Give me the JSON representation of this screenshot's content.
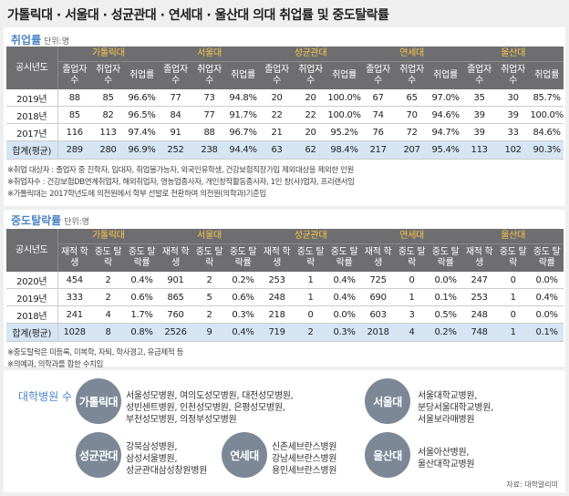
{
  "title": "가톨릭대 · 서울대 · 성균관대 · 연세대 · 울산대 의대 취업률 및 중도탈락률",
  "employment": {
    "title": "취업률",
    "unit": "단위:명",
    "year_header": "공시년도",
    "universities": [
      "가톨릭대",
      "서울대",
      "성균관대",
      "연세대",
      "울산대"
    ],
    "subheaders": [
      "졸업자 수",
      "취업자 수",
      "취업률"
    ],
    "rows": [
      {
        "year": "2019년",
        "cells": [
          "88",
          "85",
          "96.6%",
          "77",
          "73",
          "94.8%",
          "20",
          "20",
          "100.0%",
          "67",
          "65",
          "97.0%",
          "35",
          "30",
          "85.7%"
        ]
      },
      {
        "year": "2018년",
        "cells": [
          "85",
          "82",
          "96.5%",
          "84",
          "77",
          "91.7%",
          "22",
          "22",
          "100.0%",
          "74",
          "70",
          "94.6%",
          "39",
          "39",
          "100.0%"
        ]
      },
      {
        "year": "2017년",
        "cells": [
          "116",
          "113",
          "97.4%",
          "91",
          "88",
          "96.7%",
          "21",
          "20",
          "95.2%",
          "76",
          "72",
          "94.7%",
          "39",
          "33",
          "84.6%"
        ]
      },
      {
        "year": "합계(평균)",
        "cells": [
          "289",
          "280",
          "96.9%",
          "252",
          "238",
          "94.4%",
          "63",
          "62",
          "98.4%",
          "217",
          "207",
          "95.4%",
          "113",
          "102",
          "90.3%"
        ]
      }
    ],
    "notes": [
      "※취업 대상자 : 졸업자 중 진학자, 입대자, 취업불가능자, 외국인유학생, 건강보험직장가입 제외대상을 제외한 인원",
      "※취업자수 : 건강보험DB연계취업자, 해외취업자, 영농업종사자, 개인창작활동종사자, 1인 창(사)업자, 프리랜서임",
      "※가톨릭대는 2017학년도에 의전원에서 학부 선발로 전환하여 의전원(의학과)기준임"
    ]
  },
  "dropout": {
    "title": "중도탈락률",
    "unit": "단위:명",
    "year_header": "공시년도",
    "universities": [
      "가톨릭대",
      "서울대",
      "성균관대",
      "연세대",
      "울산대"
    ],
    "subheaders": [
      "재적 학생",
      "중도 탈락",
      "중도 탈락률"
    ],
    "rows": [
      {
        "year": "2020년",
        "cells": [
          "454",
          "2",
          "0.4%",
          "901",
          "2",
          "0.2%",
          "253",
          "1",
          "0.4%",
          "725",
          "0",
          "0.0%",
          "247",
          "0",
          "0.0%"
        ]
      },
      {
        "year": "2019년",
        "cells": [
          "333",
          "2",
          "0.6%",
          "865",
          "5",
          "0.6%",
          "248",
          "1",
          "0.4%",
          "690",
          "1",
          "0.1%",
          "253",
          "1",
          "0.4%"
        ]
      },
      {
        "year": "2018년",
        "cells": [
          "241",
          "4",
          "1.7%",
          "760",
          "2",
          "0.3%",
          "218",
          "0",
          "0.0%",
          "603",
          "3",
          "0.5%",
          "248",
          "0",
          "0.0%"
        ]
      },
      {
        "year": "합계(평균)",
        "cells": [
          "1028",
          "8",
          "0.8%",
          "2526",
          "9",
          "0.4%",
          "719",
          "2",
          "0.3%",
          "2018",
          "4",
          "0.2%",
          "748",
          "1",
          "0.1%"
        ]
      }
    ],
    "notes": [
      "※중도탈락은 미등록, 미복학, 자퇴, 학사경고, 유급제적 등",
      "※의예과, 의학과를 합한 수치임"
    ]
  },
  "hospitals": {
    "title": "대학병원 수",
    "groups": [
      {
        "name": "가톨릭대",
        "lines": [
          "서울성모병원, 여의도성모병원, 대전성모병원,",
          "성빈센트병원, 인천성모병원, 은평성모병원,",
          "부천성모병원, 의정부성모병원"
        ]
      },
      {
        "name": "서울대",
        "lines": [
          "서울대학교병원,",
          "분당서울대학교병원,",
          "서울보라매병원"
        ]
      },
      {
        "name": "성균관대",
        "lines": [
          "강북삼성병원,",
          "삼성서울병원,",
          "성균관대삼성창원병원"
        ]
      },
      {
        "name": "연세대",
        "lines": [
          "신촌세브란스병원",
          "강남세브란스병원",
          "용인세브란스병원"
        ]
      },
      {
        "name": "울산대",
        "lines": [
          "서울아산병원,",
          "울산대학교병원"
        ]
      }
    ],
    "source": "자료: 대학알리미"
  }
}
